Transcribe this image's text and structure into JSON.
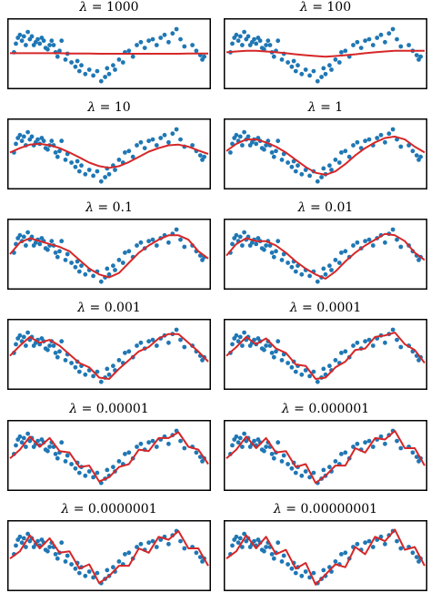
{
  "chart_data": {
    "type": "scatter",
    "points_x": [
      0.02,
      0.03,
      0.04,
      0.05,
      0.06,
      0.07,
      0.08,
      0.09,
      0.1,
      0.11,
      0.12,
      0.13,
      0.14,
      0.15,
      0.16,
      0.17,
      0.18,
      0.19,
      0.2,
      0.21,
      0.22,
      0.23,
      0.24,
      0.25,
      0.26,
      0.28,
      0.29,
      0.31,
      0.33,
      0.34,
      0.35,
      0.36,
      0.38,
      0.4,
      0.42,
      0.44,
      0.46,
      0.48,
      0.49,
      0.5,
      0.52,
      0.53,
      0.55,
      0.57,
      0.58,
      0.6,
      0.62,
      0.64,
      0.66,
      0.68,
      0.7,
      0.72,
      0.74,
      0.76,
      0.78,
      0.8,
      0.82,
      0.84,
      0.86,
      0.88,
      0.92,
      0.94,
      0.96,
      0.97,
      0.98
    ],
    "points_y": [
      0.05,
      0.35,
      0.55,
      0.65,
      0.45,
      0.6,
      0.3,
      0.75,
      0.5,
      0.6,
      0.3,
      0.4,
      0.5,
      0.35,
      0.55,
      0.45,
      0.2,
      0.15,
      0.3,
      0.45,
      0.3,
      0.05,
      -0.1,
      0.1,
      0.45,
      -0.2,
      0.0,
      -0.3,
      -0.45,
      -0.25,
      -0.6,
      -0.4,
      -0.7,
      -0.55,
      -0.75,
      -0.6,
      -0.95,
      -0.8,
      -0.5,
      -0.7,
      -0.4,
      -0.55,
      -0.2,
      -0.3,
      0.05,
      0.1,
      -0.1,
      0.3,
      0.4,
      0.2,
      0.45,
      0.5,
      0.3,
      0.55,
      0.65,
      0.4,
      0.7,
      0.85,
      0.5,
      0.25,
      0.3,
      0.1,
      -0.05,
      -0.2,
      -0.1
    ],
    "curve_x": [
      0,
      0.05,
      0.1,
      0.15,
      0.2,
      0.25,
      0.3,
      0.35,
      0.4,
      0.45,
      0.5,
      0.55,
      0.6,
      0.65,
      0.7,
      0.75,
      0.8,
      0.85,
      0.9,
      0.95,
      1.0
    ],
    "panels": [
      {
        "title_value": "1000",
        "curve_y": [
          0.02,
          0.02,
          0.02,
          0.02,
          0.02,
          0.02,
          0.01,
          0.01,
          0.01,
          0.0,
          0.0,
          0.0,
          0.0,
          0.0,
          0.0,
          0.0,
          0.0,
          0.0,
          0.01,
          0.01,
          0.01
        ]
      },
      {
        "title_value": "100",
        "curve_y": [
          0.05,
          0.08,
          0.1,
          0.1,
          0.08,
          0.05,
          0.02,
          -0.02,
          -0.05,
          -0.08,
          -0.1,
          -0.08,
          -0.05,
          -0.02,
          0.02,
          0.05,
          0.08,
          0.1,
          0.1,
          0.1,
          0.1
        ]
      },
      {
        "title_value": "10",
        "curve_y": [
          0.05,
          0.2,
          0.32,
          0.35,
          0.3,
          0.2,
          0.05,
          -0.12,
          -0.3,
          -0.42,
          -0.48,
          -0.42,
          -0.28,
          -0.1,
          0.08,
          0.2,
          0.3,
          0.32,
          0.25,
          0.12,
          0.0
        ]
      },
      {
        "title_value": "1",
        "curve_y": [
          0.1,
          0.35,
          0.5,
          0.5,
          0.4,
          0.25,
          0.05,
          -0.2,
          -0.45,
          -0.65,
          -0.72,
          -0.6,
          -0.35,
          -0.05,
          0.2,
          0.4,
          0.55,
          0.6,
          0.5,
          0.25,
          0.05
        ]
      },
      {
        "title_value": "0.1",
        "curve_y": [
          0.0,
          0.4,
          0.55,
          0.45,
          0.35,
          0.25,
          0.1,
          -0.2,
          -0.5,
          -0.7,
          -0.8,
          -0.65,
          -0.3,
          0.05,
          0.3,
          0.5,
          0.65,
          0.65,
          0.5,
          0.1,
          -0.15
        ]
      },
      {
        "title_value": "0.01",
        "curve_y": [
          -0.05,
          0.35,
          0.55,
          0.45,
          0.45,
          0.3,
          0.05,
          -0.25,
          -0.5,
          -0.7,
          -0.85,
          -0.6,
          -0.25,
          0.05,
          0.3,
          0.5,
          0.7,
          0.65,
          0.45,
          0.05,
          -0.2
        ]
      },
      {
        "title_value": "0.001",
        "curve_y": [
          -0.05,
          0.3,
          0.6,
          0.4,
          0.5,
          0.3,
          0.0,
          -0.3,
          -0.45,
          -0.8,
          -0.85,
          -0.5,
          -0.2,
          0.1,
          0.25,
          0.55,
          0.7,
          0.7,
          0.4,
          0.1,
          -0.25
        ]
      },
      {
        "title_value": "0.0001",
        "curve_y": [
          -0.05,
          0.25,
          0.6,
          0.35,
          0.55,
          0.2,
          0.05,
          -0.35,
          -0.4,
          -0.85,
          -0.8,
          -0.45,
          -0.25,
          0.15,
          0.2,
          0.6,
          0.65,
          0.75,
          0.35,
          0.15,
          -0.3
        ]
      },
      {
        "title_value": "0.00001",
        "curve_y": [
          -0.1,
          0.2,
          0.65,
          0.3,
          0.6,
          0.15,
          0.1,
          -0.4,
          -0.35,
          -0.9,
          -0.75,
          -0.4,
          -0.3,
          0.2,
          0.15,
          0.6,
          0.6,
          0.8,
          0.3,
          0.2,
          -0.3
        ]
      },
      {
        "title_value": "0.000001",
        "curve_y": [
          -0.1,
          0.2,
          0.65,
          0.25,
          0.6,
          0.1,
          0.15,
          -0.4,
          -0.3,
          -0.95,
          -0.7,
          -0.35,
          -0.35,
          0.25,
          0.1,
          0.6,
          0.55,
          0.85,
          0.25,
          0.25,
          -0.35
        ]
      },
      {
        "title_value": "0.0000001",
        "curve_y": [
          -0.1,
          0.15,
          0.7,
          0.25,
          0.6,
          0.1,
          0.15,
          -0.45,
          -0.3,
          -0.95,
          -0.7,
          -0.35,
          -0.35,
          0.25,
          0.1,
          0.65,
          0.55,
          0.85,
          0.25,
          0.25,
          -0.35
        ]
      },
      {
        "title_value": "0.00000001",
        "curve_y": [
          -0.1,
          0.15,
          0.7,
          0.25,
          0.65,
          0.05,
          0.2,
          -0.45,
          -0.25,
          -1.0,
          -0.65,
          -0.3,
          -0.4,
          0.3,
          0.05,
          0.65,
          0.5,
          0.9,
          0.2,
          0.3,
          -0.35
        ]
      }
    ],
    "title_prefix": "λ",
    "title_equals": " = ",
    "xlim": [
      0,
      1
    ],
    "ylim": [
      -1.1,
      1.1
    ],
    "ticks": "none",
    "grid": false,
    "colors": {
      "points": "#1f77b4",
      "curve": "#d62728",
      "frame": "#000000"
    }
  }
}
